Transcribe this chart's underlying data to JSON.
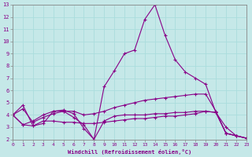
{
  "xlabel": "Windchill (Refroidissement éolien,°C)",
  "xlim": [
    0,
    23
  ],
  "ylim": [
    2,
    13
  ],
  "xticks": [
    0,
    1,
    2,
    3,
    4,
    5,
    6,
    7,
    8,
    9,
    10,
    11,
    12,
    13,
    14,
    15,
    16,
    17,
    18,
    19,
    20,
    21,
    22,
    23
  ],
  "yticks": [
    2,
    3,
    4,
    5,
    6,
    7,
    8,
    9,
    10,
    11,
    12,
    13
  ],
  "bg_color": "#c5e8e8",
  "line_color": "#880088",
  "grid_color": "#aadddd",
  "line1": {
    "x": [
      0,
      1,
      2,
      3,
      4,
      5,
      6,
      7,
      8,
      9,
      10,
      11,
      12,
      13,
      14,
      15,
      16,
      17,
      18,
      19,
      20,
      21,
      22,
      23
    ],
    "y": [
      4.0,
      4.8,
      3.1,
      3.3,
      4.3,
      4.4,
      4.1,
      2.9,
      2.0,
      6.3,
      7.6,
      9.0,
      9.3,
      11.8,
      13.0,
      10.5,
      8.5,
      7.5,
      7.0,
      6.5,
      4.2,
      3.0,
      2.3,
      2.1
    ]
  },
  "line2": {
    "x": [
      0,
      1,
      2,
      3,
      4,
      5,
      6,
      7,
      8,
      9,
      10,
      11,
      12,
      13,
      14,
      15,
      16,
      17,
      18,
      19,
      20,
      21,
      22,
      23
    ],
    "y": [
      4.0,
      4.5,
      3.4,
      3.8,
      4.1,
      4.3,
      4.3,
      4.0,
      4.1,
      4.3,
      4.6,
      4.8,
      5.0,
      5.2,
      5.3,
      5.4,
      5.5,
      5.6,
      5.7,
      5.7,
      4.3,
      2.5,
      2.3,
      2.1
    ]
  },
  "line3": {
    "x": [
      0,
      1,
      2,
      3,
      4,
      5,
      6,
      7,
      8,
      9,
      10,
      11,
      12,
      13,
      14,
      15,
      16,
      17,
      18,
      19,
      20,
      21,
      22,
      23
    ],
    "y": [
      4.0,
      3.2,
      3.1,
      3.5,
      3.5,
      3.4,
      3.4,
      3.3,
      3.3,
      3.4,
      3.5,
      3.6,
      3.7,
      3.7,
      3.8,
      3.9,
      3.9,
      4.0,
      4.1,
      4.3,
      4.2,
      2.5,
      2.3,
      2.1
    ]
  },
  "line4": {
    "x": [
      0,
      1,
      2,
      3,
      4,
      5,
      6,
      7,
      8,
      9,
      10,
      11,
      12,
      13,
      14,
      15,
      16,
      17,
      18,
      19,
      20,
      21,
      22,
      23
    ],
    "y": [
      4.0,
      3.2,
      3.5,
      4.0,
      4.3,
      4.3,
      3.8,
      3.2,
      2.0,
      3.5,
      3.9,
      4.0,
      4.0,
      4.0,
      4.1,
      4.1,
      4.2,
      4.2,
      4.3,
      4.3,
      4.2,
      2.5,
      2.3,
      2.1
    ]
  }
}
